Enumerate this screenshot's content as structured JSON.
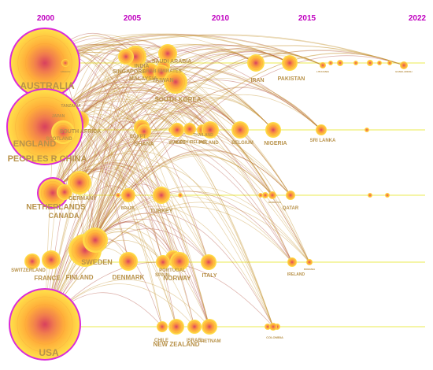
{
  "years": [
    "2000",
    "2005",
    "2010",
    "2015",
    "2022"
  ],
  "colors": {
    "year_label": "#c000c0",
    "label": "#b8924a",
    "edge_a": "#c89a3a",
    "edge_b": "#b04a3a",
    "timeline": "#f2f28a",
    "halo": "#d92bd9",
    "node_outer": "#ffd84a",
    "node_inner": "#e0506a"
  },
  "countries": [
    "AUSTRALIA",
    "GREECE",
    "INDIA",
    "SINGAPORE",
    "ARAB EMIRATES",
    "SAUDI ARABIA",
    "MALAYSIA",
    "TAIWAN",
    "SOUTH KOREA",
    "IRAN",
    "PAKISTAN",
    "LITHUANIA",
    "BANGLADESH",
    "TANZANIA",
    "JAPAN",
    "SOUTH AFRICA",
    "SCOTLAND",
    "ENGLAND",
    "PEOPLES R CHINA",
    "EGYPT",
    "GHANA",
    "WALES",
    "NORTH IRELAND",
    "THAILAND",
    "POLAND",
    "BELGIUM",
    "NIGERIA",
    "SRI LANKA",
    "GERMANY",
    "NETHERLANDS",
    "CANADA",
    "BRAZIL",
    "TURKEY",
    "MOROCCO",
    "QATAR",
    "SWITZERLAND",
    "FRANCE",
    "FINLAND",
    "SWEDEN",
    "DENMARK",
    "PORTUGAL",
    "SPAIN",
    "NORWAY",
    "ITALY",
    "IRELAND",
    "ROMANIA",
    "USA",
    "CHILE",
    "NEW ZEALAND",
    "ISRAEL",
    "VIETNAM",
    "COLOMBIA"
  ]
}
